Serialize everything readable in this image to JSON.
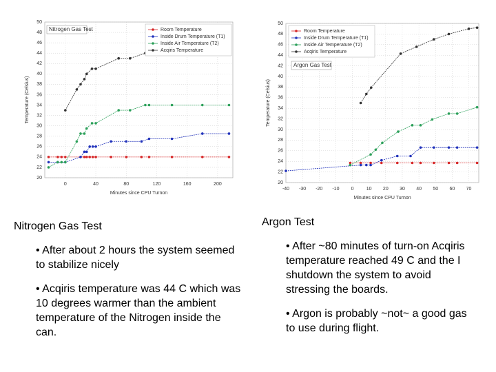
{
  "chart_data": [
    {
      "type": "line",
      "annotation": "Nitrogen Gas Test",
      "x_label": "Minutes since CPU Turnon",
      "y_label": "Temperature (Celsius)",
      "xlim": [
        -27,
        220
      ],
      "xticks": [
        0,
        40,
        80,
        120,
        160,
        200
      ],
      "ylim": [
        20,
        50
      ],
      "yticks": [
        20,
        22,
        24,
        26,
        28,
        30,
        32,
        34,
        36,
        38,
        40,
        42,
        44,
        46,
        48,
        50
      ],
      "grid": true,
      "legend": "upper right",
      "series": [
        {
          "name": "Room Temperature",
          "color": "#d62728",
          "x": [
            -22,
            -10,
            -5,
            0,
            20,
            25,
            28,
            32,
            36,
            40,
            60,
            80,
            100,
            110,
            140,
            180,
            215
          ],
          "values": [
            24,
            24,
            24,
            24,
            24,
            24,
            24,
            24,
            24,
            24,
            24,
            24,
            24,
            24,
            24,
            24,
            24
          ]
        },
        {
          "name": "Inside Drum Temperature (T1)",
          "color": "#2233bb",
          "x": [
            -22,
            -10,
            0,
            20,
            25,
            28,
            32,
            36,
            40,
            60,
            80,
            100,
            110,
            140,
            180,
            215
          ],
          "values": [
            23,
            23,
            23,
            24,
            25,
            25,
            26,
            26,
            26,
            27,
            27,
            27,
            27.5,
            27.5,
            28.5,
            28.5
          ]
        },
        {
          "name": "Inside Air Temperature (T2)",
          "color": "#2ca05a",
          "x": [
            -22,
            -10,
            -5,
            0,
            15,
            20,
            25,
            28,
            35,
            40,
            70,
            85,
            105,
            110,
            140,
            180,
            215
          ],
          "values": [
            22,
            23,
            23,
            23,
            27,
            28.5,
            28.5,
            29.5,
            30.5,
            30.5,
            33,
            33,
            34,
            34,
            34,
            34,
            34
          ]
        },
        {
          "name": "Acqiris Temperature",
          "color": "#333333",
          "x": [
            0,
            15,
            20,
            25,
            28,
            35,
            40,
            70,
            85,
            105,
            110,
            140,
            180,
            215
          ],
          "values": [
            33,
            37,
            38,
            39,
            40,
            41,
            41,
            43,
            43,
            44,
            44,
            44,
            44,
            44
          ]
        }
      ]
    },
    {
      "type": "line",
      "annotation": "Argon Gas Test",
      "x_label": "Minutes since CPU Turnon",
      "y_label": "Temperature (Celsius)",
      "xlim": [
        -40,
        76
      ],
      "xticks": [
        -40,
        -30,
        -20,
        -10,
        0,
        10,
        20,
        30,
        40,
        50,
        60,
        70
      ],
      "ylim": [
        20,
        50
      ],
      "yticks": [
        20,
        22,
        24,
        26,
        28,
        30,
        32,
        34,
        36,
        38,
        40,
        42,
        44,
        46,
        48,
        50
      ],
      "grid": true,
      "legend": "upper left",
      "series": [
        {
          "name": "Room Temperature",
          "color": "#d62728",
          "x": [
            -1.3,
            5,
            11,
            17.5,
            27,
            36,
            41,
            49,
            58,
            63,
            75
          ],
          "values": [
            23.7,
            23.7,
            23.7,
            23.7,
            23.7,
            23.7,
            23.7,
            23.7,
            23.7,
            23.7,
            23.7
          ]
        },
        {
          "name": "Inside Drum Temperature (T1)",
          "color": "#2233bb",
          "x": [
            -40,
            5,
            8.4,
            11,
            17.5,
            27,
            35,
            41,
            49,
            58,
            63,
            75
          ],
          "values": [
            22.2,
            23.3,
            23.3,
            23.3,
            24.2,
            25,
            25,
            26.6,
            26.6,
            26.6,
            26.6,
            26.6
          ]
        },
        {
          "name": "Inside Air Temperature (T2)",
          "color": "#2ca05a",
          "x": [
            -1.3,
            11,
            14,
            18,
            27.5,
            36,
            41,
            48,
            58,
            63,
            75
          ],
          "values": [
            23.3,
            25.3,
            26.2,
            27.5,
            29.6,
            30.8,
            30.8,
            31.9,
            33,
            33,
            34.2
          ]
        },
        {
          "name": "Acqiris Temperature",
          "color": "#333333",
          "x": [
            5,
            8.4,
            11.3,
            29,
            38.6,
            49,
            58,
            70,
            75
          ],
          "values": [
            35,
            36.7,
            37.9,
            44.3,
            45.6,
            47,
            48,
            49,
            49.2
          ]
        }
      ]
    }
  ],
  "left_text": {
    "heading": "Nitrogen Gas Test",
    "bullets": [
      "• After about 2 hours the system seemed to stabilize nicely",
      "• Acqiris temperature was 44 C which was 10 degrees warmer than the ambient temperature of the Nitrogen inside the can."
    ]
  },
  "right_text": {
    "heading": "Argon Test",
    "bullets": [
      "• After ~80 minutes of turn-on Acqiris temperature reached 49 C and the I shutdown the system to avoid stressing the boards.",
      "• Argon is probably ~not~ a good gas to use during flight."
    ]
  }
}
